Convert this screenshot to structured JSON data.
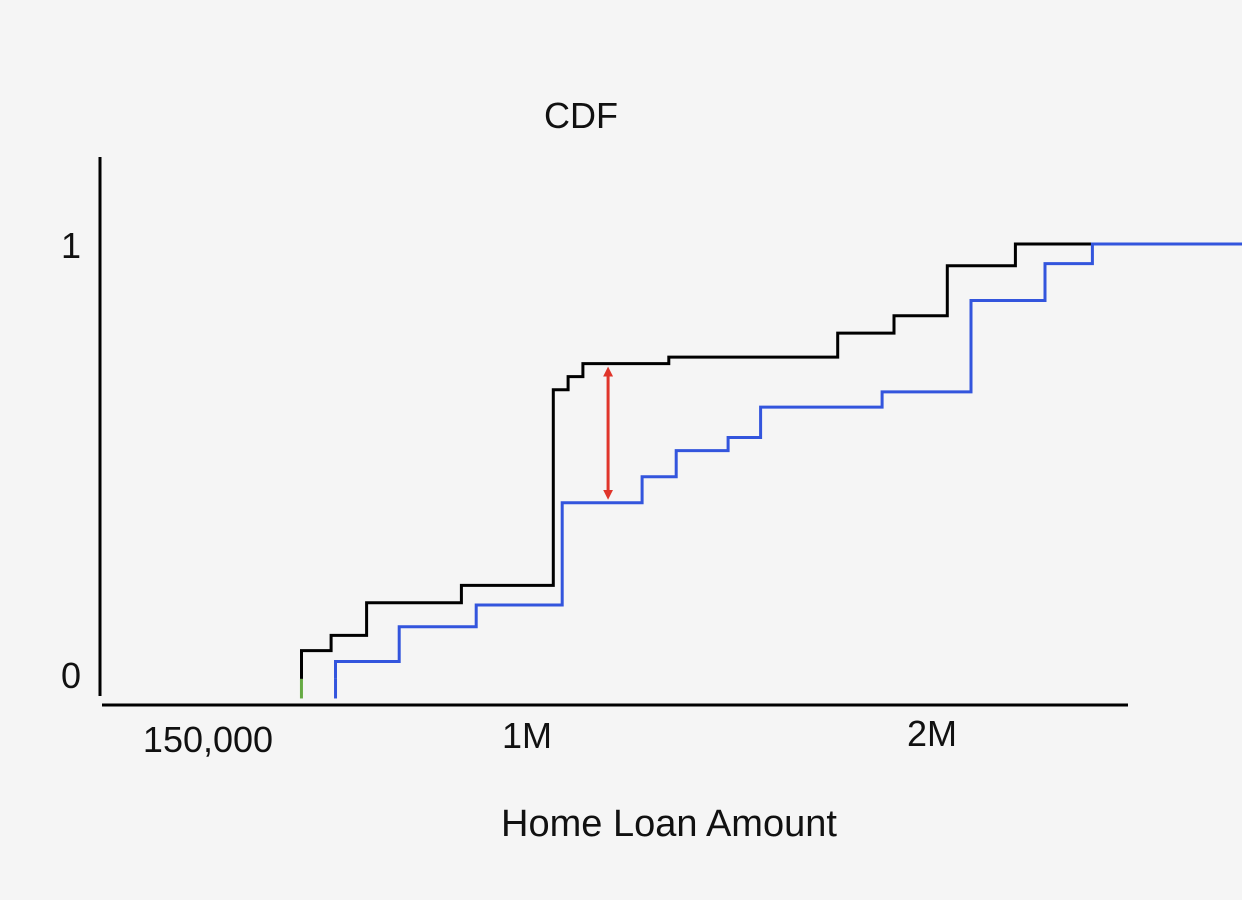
{
  "chart_data": {
    "type": "line",
    "step": true,
    "title": "CDF",
    "xlabel": "Home Loan Amount",
    "ylabel": "",
    "x_ticks": [
      {
        "value": 150000,
        "label": "150,000"
      },
      {
        "value": 1000000,
        "label": "1M"
      },
      {
        "value": 2000000,
        "label": "2M"
      }
    ],
    "y_ticks": [
      {
        "value": 0,
        "label": "0"
      },
      {
        "value": 1,
        "label": "1"
      }
    ],
    "xlim": [
      -530000,
      2940000
    ],
    "ylim": [
      -0.06,
      1.2
    ],
    "grid": false,
    "legend": "none",
    "series": [
      {
        "color": "#000000",
        "points": [
          [
            150000,
            0.0
          ],
          [
            150000,
            0.065
          ],
          [
            250000,
            0.065
          ],
          [
            250000,
            0.1
          ],
          [
            370000,
            0.1
          ],
          [
            370000,
            0.175
          ],
          [
            690000,
            0.175
          ],
          [
            690000,
            0.215
          ],
          [
            1000000,
            0.215
          ],
          [
            1000000,
            0.665
          ],
          [
            1050000,
            0.665
          ],
          [
            1050000,
            0.695
          ],
          [
            1100000,
            0.695
          ],
          [
            1100000,
            0.725
          ],
          [
            1390000,
            0.725
          ],
          [
            1390000,
            0.74
          ],
          [
            1960000,
            0.74
          ],
          [
            1960000,
            0.795
          ],
          [
            2150000,
            0.795
          ],
          [
            2150000,
            0.835
          ],
          [
            2330000,
            0.835
          ],
          [
            2330000,
            0.95
          ],
          [
            2560000,
            0.95
          ],
          [
            2560000,
            1.0
          ],
          [
            2820000,
            1.0
          ]
        ]
      },
      {
        "color": "#3355dd",
        "points": [
          [
            265000,
            0.0
          ],
          [
            265000,
            0.04
          ],
          [
            480000,
            0.04
          ],
          [
            480000,
            0.12
          ],
          [
            740000,
            0.12
          ],
          [
            740000,
            0.17
          ],
          [
            1030000,
            0.17
          ],
          [
            1030000,
            0.405
          ],
          [
            1300000,
            0.405
          ],
          [
            1300000,
            0.465
          ],
          [
            1415000,
            0.465
          ],
          [
            1415000,
            0.525
          ],
          [
            1590000,
            0.525
          ],
          [
            1590000,
            0.555
          ],
          [
            1700000,
            0.555
          ],
          [
            1700000,
            0.625
          ],
          [
            2110000,
            0.625
          ],
          [
            2110000,
            0.66
          ],
          [
            2410000,
            0.66
          ],
          [
            2410000,
            0.87
          ],
          [
            2660000,
            0.87
          ],
          [
            2660000,
            0.955
          ],
          [
            2820000,
            0.955
          ],
          [
            2820000,
            1.0
          ],
          [
            3340000,
            1.0
          ]
        ]
      }
    ],
    "annotations": [
      {
        "type": "line",
        "color": "#66aa44",
        "x": 150000,
        "y_from": -0.045,
        "y_to": 0.0
      },
      {
        "type": "line",
        "color": "#3355dd",
        "x": 265000,
        "y_from": -0.045,
        "y_to": 0.0
      },
      {
        "type": "double-arrow",
        "color": "#e0352b",
        "x": 1185000,
        "y_from": 0.405,
        "y_to": 0.725
      }
    ]
  }
}
